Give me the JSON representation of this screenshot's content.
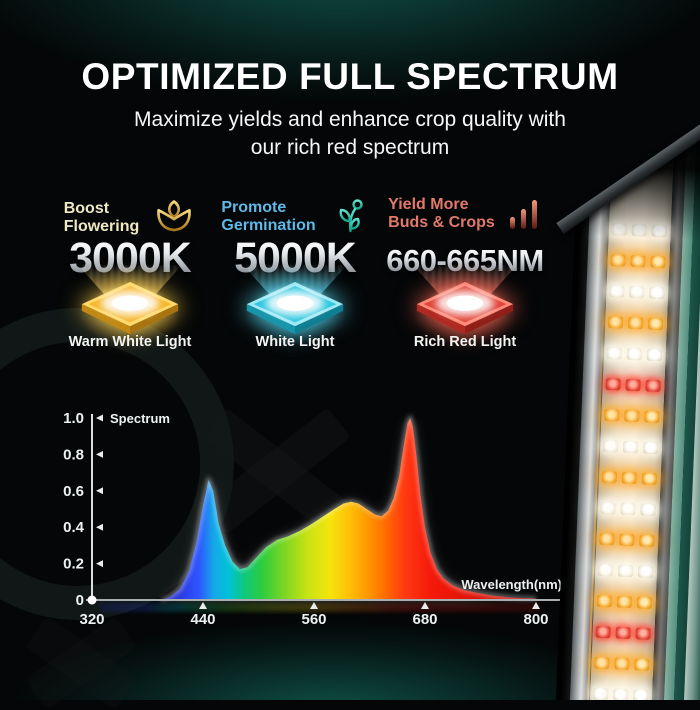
{
  "header": {
    "title": "OPTIMIZED FULL SPECTRUM",
    "subtitle_line1": "Maximize yields and enhance crop quality with",
    "subtitle_line2": "our rich red spectrum"
  },
  "features": [
    {
      "label_line1": "Boost",
      "label_line2": "Flowering",
      "icon": "flower-icon",
      "value": "3000K",
      "light_label": "Warm White Light",
      "accent": "#eee8c4",
      "beam_color": "#ffcf4d",
      "chip": {
        "edge": "#ffd96a",
        "body": "#f5b72e",
        "dark": "#c28a14",
        "dark2": "#a87410"
      }
    },
    {
      "label_line1": "Promote",
      "label_line2": "Germination",
      "icon": "sprout-icon",
      "value": "5000K",
      "light_label": "White Light",
      "accent": "#5eb9e8",
      "beam_color": "#54d6ef",
      "chip": {
        "edge": "#9fe9f5",
        "body": "#31c7e0",
        "dark": "#1895ab",
        "dark2": "#0f7f93"
      }
    },
    {
      "label_line1": "Yield More",
      "label_line2": "Buds & Crops",
      "icon": "bars-icon",
      "value": "660-665NM",
      "light_label": "Rich Red Light",
      "accent": "#e2796a",
      "beam_color": "#ff6a55",
      "chip": {
        "edge": "#ff8a78",
        "body": "#e0453a",
        "dark": "#b02a22",
        "dark2": "#8f1f18"
      }
    }
  ],
  "chart_data": {
    "type": "area",
    "title": "Spectrum",
    "ylabel": "Spectrum",
    "xlabel": "Wavelength(nm)",
    "xlim": [
      320,
      800
    ],
    "ylim": [
      0,
      1.0
    ],
    "x_ticks": [
      320,
      440,
      560,
      680,
      800
    ],
    "y_ticks": [
      0,
      0.2,
      0.4,
      0.6,
      0.8,
      1.0
    ],
    "grid": false,
    "fill": "rainbow wavelength gradient",
    "series": [
      {
        "name": "spectrum",
        "points": [
          [
            395,
            0
          ],
          [
            405,
            0.02
          ],
          [
            415,
            0.06
          ],
          [
            425,
            0.16
          ],
          [
            433,
            0.32
          ],
          [
            440,
            0.52
          ],
          [
            446,
            0.66
          ],
          [
            451,
            0.6
          ],
          [
            457,
            0.42
          ],
          [
            464,
            0.3
          ],
          [
            472,
            0.21
          ],
          [
            480,
            0.17
          ],
          [
            488,
            0.18
          ],
          [
            497,
            0.23
          ],
          [
            508,
            0.29
          ],
          [
            520,
            0.33
          ],
          [
            532,
            0.35
          ],
          [
            545,
            0.38
          ],
          [
            558,
            0.42
          ],
          [
            570,
            0.46
          ],
          [
            582,
            0.5
          ],
          [
            592,
            0.53
          ],
          [
            600,
            0.54
          ],
          [
            608,
            0.53
          ],
          [
            617,
            0.5
          ],
          [
            626,
            0.47
          ],
          [
            633,
            0.46
          ],
          [
            640,
            0.49
          ],
          [
            646,
            0.56
          ],
          [
            652,
            0.68
          ],
          [
            657,
            0.85
          ],
          [
            661,
            0.97
          ],
          [
            664,
            1.0
          ],
          [
            667,
            0.95
          ],
          [
            671,
            0.78
          ],
          [
            675,
            0.58
          ],
          [
            680,
            0.4
          ],
          [
            686,
            0.26
          ],
          [
            693,
            0.17
          ],
          [
            700,
            0.12
          ],
          [
            710,
            0.08
          ],
          [
            722,
            0.055
          ],
          [
            736,
            0.04
          ],
          [
            752,
            0.025
          ],
          [
            770,
            0.015
          ],
          [
            785,
            0.01
          ],
          [
            800,
            0.008
          ]
        ]
      }
    ]
  },
  "led_bar": {
    "leds_per_row": 3,
    "row_pattern": [
      "white",
      "amber",
      "white",
      "amber",
      "white",
      "red",
      "amber",
      "white",
      "amber",
      "white",
      "amber",
      "white",
      "amber",
      "red",
      "amber",
      "white"
    ]
  }
}
